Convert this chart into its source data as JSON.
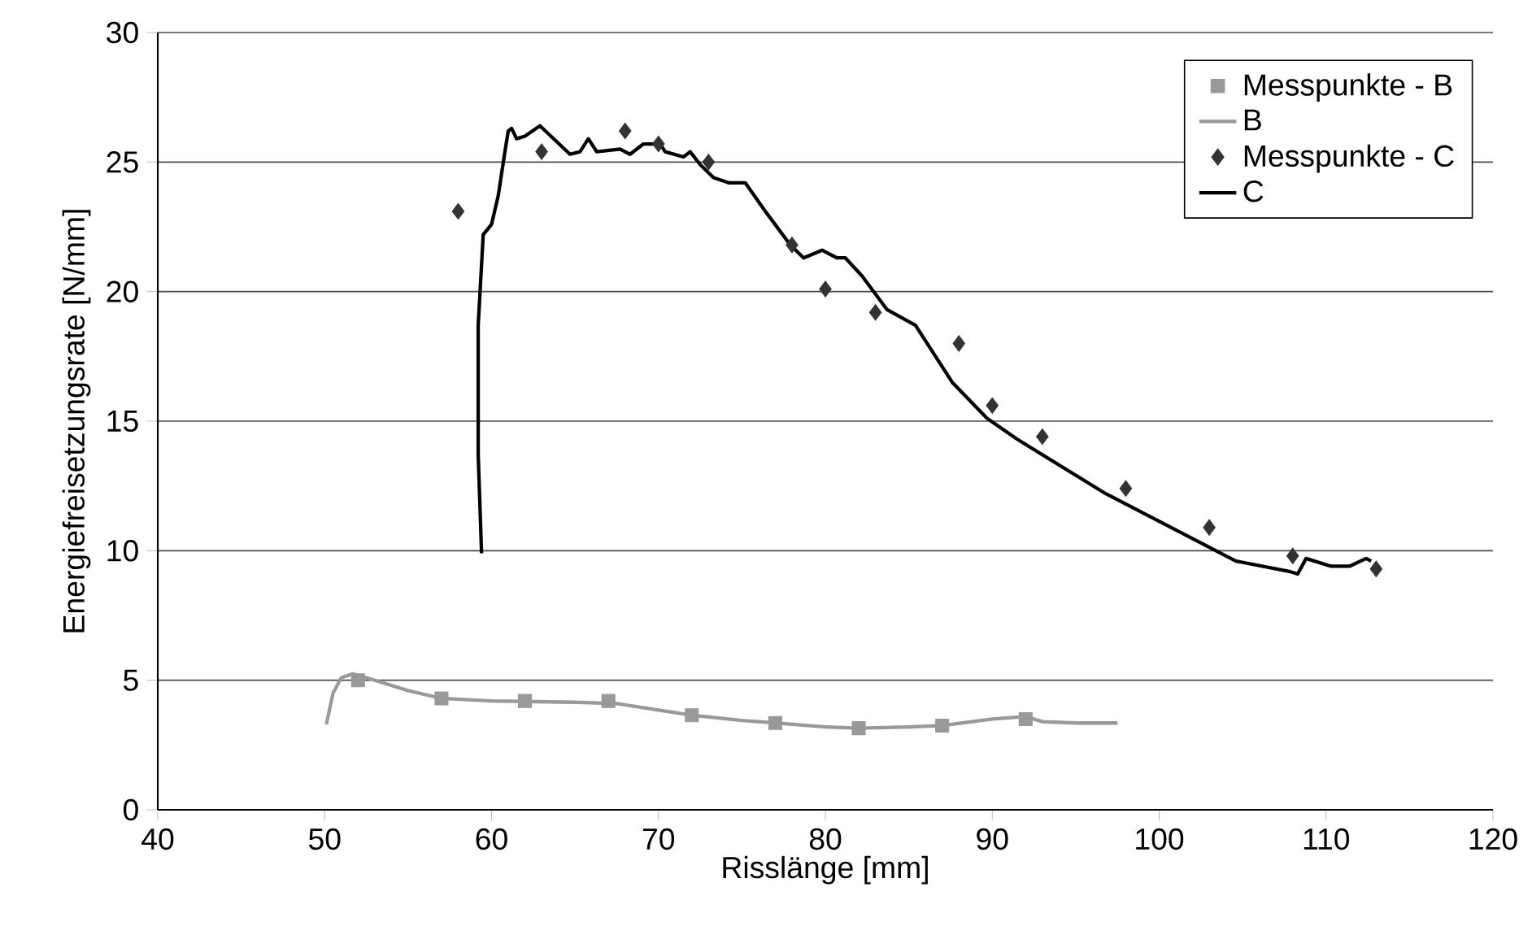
{
  "chart_data": {
    "type": "line",
    "xlabel": "Risslänge [mm]",
    "ylabel": "Energiefreisetzungsrate [N/mm]",
    "xlim": [
      40,
      120
    ],
    "ylim": [
      0,
      30
    ],
    "xticks": [
      40,
      50,
      60,
      70,
      80,
      90,
      100,
      110,
      120
    ],
    "yticks": [
      0,
      5,
      10,
      15,
      20,
      25,
      30
    ],
    "grid": "y",
    "legend": "top right",
    "series": [
      {
        "name": "Messpunkte - B",
        "type": "scatter",
        "marker": "square",
        "color": "#999999",
        "x": [
          52,
          57,
          62,
          67,
          72,
          77,
          82,
          87,
          92
        ],
        "values": [
          5.0,
          4.3,
          4.2,
          4.2,
          3.65,
          3.35,
          3.15,
          3.25,
          3.5
        ]
      },
      {
        "name": "B",
        "type": "line",
        "marker": "none",
        "line_style": "solid",
        "color": "#999999",
        "x": [
          50.1,
          50.5,
          51,
          51.7,
          52.5,
          55,
          57,
          60,
          65,
          67.5,
          70,
          72,
          75,
          77,
          80,
          82,
          85,
          87,
          90,
          92,
          93,
          95,
          97.5
        ],
        "values": [
          3.3,
          4.5,
          5.1,
          5.25,
          5.1,
          4.6,
          4.3,
          4.2,
          4.15,
          4.1,
          3.85,
          3.65,
          3.45,
          3.35,
          3.2,
          3.15,
          3.2,
          3.25,
          3.5,
          3.6,
          3.4,
          3.35,
          3.35
        ]
      },
      {
        "name": "Messpunkte - C",
        "type": "scatter",
        "marker": "diamond",
        "color": "#333333",
        "x": [
          58,
          63,
          68,
          70,
          73,
          78,
          80,
          83,
          88,
          90,
          93,
          98,
          103,
          108,
          113
        ],
        "values": [
          23.1,
          25.4,
          26.2,
          25.7,
          25.0,
          21.8,
          20.1,
          19.2,
          18.0,
          15.6,
          14.4,
          12.4,
          10.9,
          9.8,
          9.3
        ]
      },
      {
        "name": "C",
        "type": "line",
        "marker": "none",
        "line_style": "solid",
        "color": "#000000",
        "x": [
          59.4,
          59.2,
          59.2,
          59.5,
          60.0,
          60.4,
          60.8,
          61.0,
          61.2,
          61.5,
          62.0,
          62.9,
          64.7,
          65.3,
          65.8,
          66.3,
          67.7,
          68.3,
          69.1,
          70.1,
          70.4,
          71.5,
          71.9,
          72.5,
          73.3,
          74.2,
          75.2,
          76.4,
          77.9,
          78.7,
          79.8,
          80.7,
          81.2,
          82.2,
          83.7,
          85.4,
          87.6,
          89.7,
          91.5,
          96.8,
          100.7,
          104.6,
          107.8,
          108.3,
          108.8,
          110.3,
          111.4,
          112.4,
          112.7
        ],
        "values": [
          9.9,
          13.7,
          18.7,
          22.2,
          22.6,
          23.7,
          25.4,
          26.2,
          26.3,
          25.9,
          26.0,
          26.4,
          25.3,
          25.4,
          25.9,
          25.4,
          25.5,
          25.3,
          25.7,
          25.7,
          25.4,
          25.2,
          25.4,
          24.9,
          24.4,
          24.2,
          24.2,
          23.1,
          21.8,
          21.3,
          21.6,
          21.3,
          21.3,
          20.6,
          19.3,
          18.7,
          16.5,
          15.1,
          14.3,
          12.2,
          10.9,
          9.6,
          9.2,
          9.1,
          9.7,
          9.4,
          9.4,
          9.7,
          9.6
        ]
      }
    ]
  }
}
